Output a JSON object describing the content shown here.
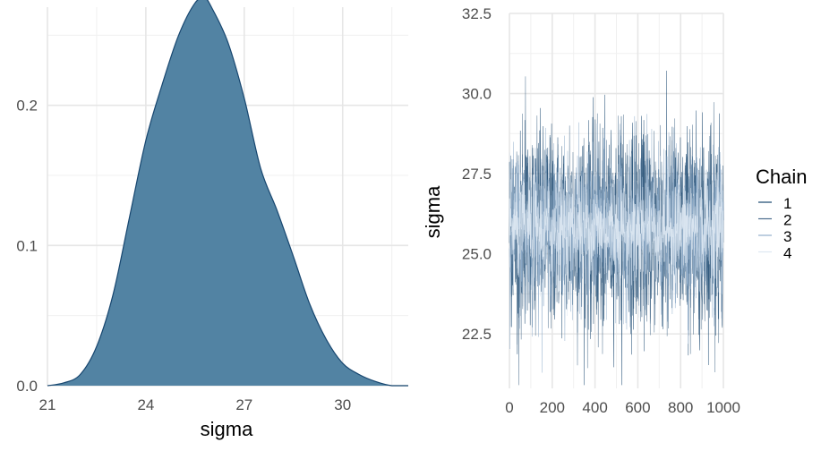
{
  "chart_data": [
    {
      "type": "area",
      "xlabel": "sigma",
      "ylabel": "",
      "xlim": [
        21,
        32
      ],
      "ylim": [
        0,
        0.27
      ],
      "xticks": [
        21,
        24,
        27,
        30
      ],
      "xtick_labels": [
        "21",
        "24",
        "27",
        "30"
      ],
      "yticks": [
        0.0,
        0.1,
        0.2
      ],
      "ytick_labels": [
        "0.0",
        "0.1",
        "0.2"
      ],
      "grid": true,
      "fill_color": "#5283A3",
      "line_color": "#17466F",
      "x": [
        21.0,
        21.5,
        22.0,
        22.5,
        23.0,
        23.5,
        24.0,
        24.5,
        25.0,
        25.5,
        25.8,
        26.0,
        26.5,
        27.0,
        27.5,
        28.0,
        28.5,
        29.0,
        29.5,
        30.0,
        30.5,
        31.0,
        31.5,
        32.0
      ],
      "y": [
        0.0,
        0.002,
        0.008,
        0.028,
        0.065,
        0.12,
        0.175,
        0.215,
        0.25,
        0.273,
        0.276,
        0.27,
        0.245,
        0.205,
        0.155,
        0.125,
        0.092,
        0.058,
        0.033,
        0.016,
        0.008,
        0.003,
        0.0,
        0.0
      ]
    },
    {
      "type": "line",
      "xlabel": "",
      "ylabel": "sigma",
      "xlim": [
        0,
        1000
      ],
      "ylim": [
        20.8,
        32.5
      ],
      "xticks": [
        0,
        200,
        400,
        600,
        800,
        1000
      ],
      "xtick_labels": [
        "0",
        "200",
        "400",
        "600",
        "800",
        "1000"
      ],
      "yticks": [
        22.5,
        25.0,
        27.5,
        30.0,
        32.5
      ],
      "ytick_labels": [
        "22.5",
        "25.0",
        "27.5",
        "30.0",
        "32.5"
      ],
      "grid": true,
      "legend": {
        "title": "Chain",
        "position": "right"
      },
      "trace": {
        "iterations": 1000,
        "mean": 25.8,
        "sd": 1.5
      },
      "series": [
        {
          "name": "1",
          "color": "#17466F"
        },
        {
          "name": "2",
          "color": "#4A6D8C"
        },
        {
          "name": "3",
          "color": "#92AFCC"
        },
        {
          "name": "4",
          "color": "#DDE8F2"
        }
      ]
    }
  ]
}
